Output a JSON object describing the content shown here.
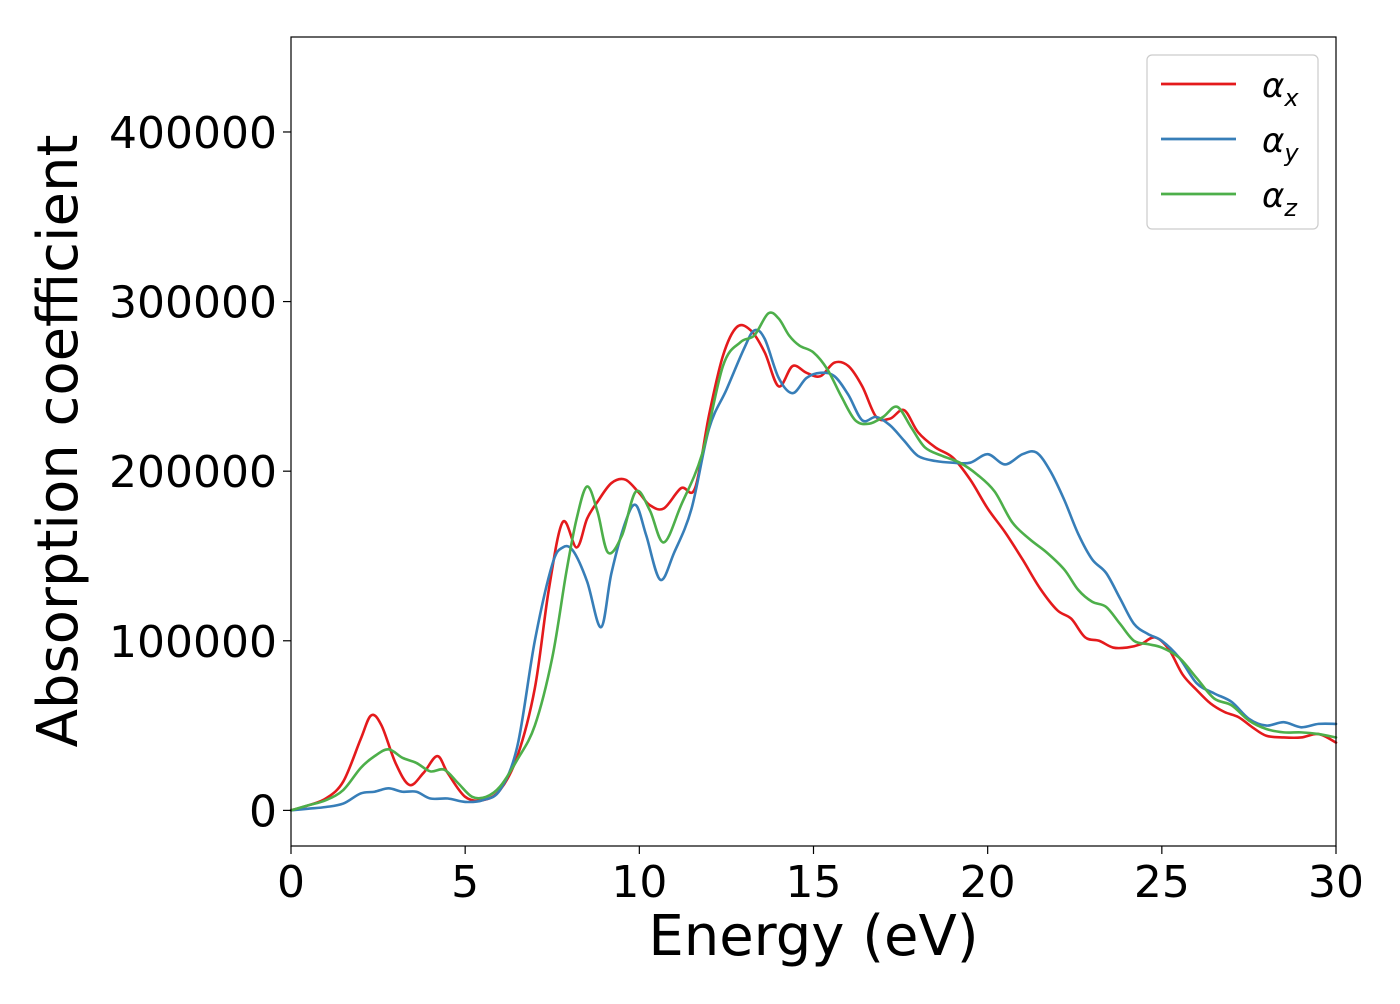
{
  "chart_data": {
    "type": "line",
    "title": "",
    "xlabel": "Energy (eV)",
    "ylabel": "Absorption coefficient",
    "xlim": [
      0,
      30
    ],
    "ylim": [
      -21000,
      456000
    ],
    "xticks": [
      0,
      5,
      10,
      15,
      20,
      25,
      30
    ],
    "yticks": [
      0,
      100000,
      200000,
      300000,
      400000
    ],
    "grid": false,
    "legend": "top-right",
    "series": [
      {
        "name": "αx",
        "symbol": "α",
        "subscript": "x",
        "color": "#e41a1c",
        "x": [
          0,
          0.5,
          1,
          1.5,
          2,
          2.3,
          2.6,
          3,
          3.4,
          3.8,
          4.2,
          4.5,
          5,
          5.5,
          6,
          6.5,
          7,
          7.4,
          7.8,
          8.2,
          8.5,
          8.8,
          9.2,
          9.6,
          10,
          10.3,
          10.7,
          11.2,
          11.6,
          12,
          12.4,
          12.8,
          13.2,
          13.6,
          14,
          14.4,
          14.8,
          15.2,
          15.6,
          16,
          16.4,
          16.8,
          17.2,
          17.6,
          18,
          18.5,
          19,
          19.5,
          20,
          20.5,
          21,
          21.5,
          22,
          22.4,
          22.8,
          23.2,
          23.6,
          24,
          24.4,
          24.8,
          25.2,
          25.6,
          26,
          26.4,
          26.8,
          27.2,
          27.6,
          28,
          28.5,
          29,
          29.5,
          30
        ],
        "y": [
          0,
          3000,
          7000,
          17000,
          42000,
          56000,
          50000,
          28000,
          15000,
          22000,
          32000,
          22000,
          8000,
          6000,
          12000,
          32000,
          72000,
          130000,
          170000,
          155000,
          172000,
          182000,
          193000,
          195000,
          187000,
          180000,
          178000,
          190000,
          190000,
          233000,
          268000,
          285000,
          283000,
          270000,
          250000,
          262000,
          258000,
          256000,
          264000,
          262000,
          250000,
          232000,
          231000,
          236000,
          223000,
          214000,
          208000,
          195000,
          178000,
          164000,
          148000,
          131000,
          118000,
          113000,
          102000,
          100000,
          96000,
          96000,
          98000,
          102000,
          95000,
          80000,
          71000,
          63000,
          58000,
          55000,
          49000,
          44000,
          43000,
          43000,
          45000,
          40000
        ]
      },
      {
        "name": "αy",
        "symbol": "α",
        "subscript": "y",
        "color": "#377eb8",
        "x": [
          0,
          0.5,
          1,
          1.5,
          2,
          2.4,
          2.8,
          3.2,
          3.6,
          4,
          4.5,
          5,
          5.5,
          6,
          6.5,
          7,
          7.5,
          7.8,
          8.1,
          8.5,
          8.9,
          9.2,
          9.6,
          9.9,
          10.2,
          10.6,
          11,
          11.5,
          12,
          12.5,
          13,
          13.3,
          13.6,
          14,
          14.4,
          14.8,
          15.2,
          15.6,
          16,
          16.4,
          16.8,
          17.2,
          17.6,
          18,
          18.5,
          19,
          19.5,
          20,
          20.5,
          21,
          21.4,
          21.8,
          22.2,
          22.6,
          23,
          23.4,
          23.8,
          24.2,
          24.6,
          25,
          25.5,
          26,
          26.5,
          27,
          27.5,
          28,
          28.5,
          29,
          29.5,
          30
        ],
        "y": [
          0,
          1000,
          2000,
          4000,
          10000,
          11000,
          13000,
          11000,
          11000,
          7000,
          7000,
          5000,
          6000,
          12000,
          38000,
          100000,
          145000,
          155000,
          153000,
          135000,
          108000,
          140000,
          170000,
          180000,
          162000,
          136000,
          152000,
          178000,
          225000,
          248000,
          272000,
          283000,
          278000,
          255000,
          246000,
          255000,
          258000,
          256000,
          245000,
          230000,
          232000,
          227000,
          218000,
          209000,
          206000,
          205000,
          205000,
          210000,
          204000,
          210000,
          211000,
          200000,
          183000,
          163000,
          148000,
          140000,
          125000,
          110000,
          104000,
          100000,
          90000,
          75000,
          69000,
          64000,
          54000,
          50000,
          52000,
          49000,
          51000,
          51000
        ]
      },
      {
        "name": "αz",
        "symbol": "α",
        "subscript": "z",
        "color": "#4daf4a",
        "x": [
          0,
          0.5,
          1,
          1.5,
          2,
          2.4,
          2.8,
          3.2,
          3.6,
          4,
          4.4,
          4.8,
          5.2,
          5.6,
          6,
          6.5,
          7,
          7.5,
          7.9,
          8.2,
          8.5,
          8.8,
          9.1,
          9.5,
          9.9,
          10.3,
          10.7,
          11.2,
          11.8,
          12.4,
          12.9,
          13.3,
          13.7,
          14,
          14.3,
          14.6,
          15,
          15.4,
          15.8,
          16.2,
          16.6,
          17,
          17.4,
          17.8,
          18.2,
          18.7,
          19.2,
          19.7,
          20.2,
          20.7,
          21.2,
          21.7,
          22.2,
          22.6,
          23,
          23.4,
          23.8,
          24.2,
          24.6,
          25,
          25.5,
          26,
          26.5,
          27,
          27.5,
          28,
          28.5,
          29,
          29.5,
          30
        ],
        "y": [
          0,
          3000,
          6000,
          12000,
          25000,
          32000,
          36000,
          31000,
          28000,
          23000,
          24000,
          16000,
          8000,
          8000,
          14000,
          30000,
          50000,
          90000,
          140000,
          172000,
          191000,
          176000,
          152000,
          162000,
          188000,
          177000,
          158000,
          180000,
          210000,
          262000,
          276000,
          280000,
          293000,
          290000,
          280000,
          274000,
          270000,
          260000,
          244000,
          230000,
          228000,
          232000,
          238000,
          226000,
          214000,
          209000,
          205000,
          198000,
          188000,
          170000,
          160000,
          152000,
          142000,
          130000,
          123000,
          120000,
          110000,
          100000,
          98000,
          96000,
          90000,
          78000,
          66000,
          62000,
          53000,
          48000,
          46000,
          46000,
          45000,
          43000
        ]
      }
    ]
  }
}
